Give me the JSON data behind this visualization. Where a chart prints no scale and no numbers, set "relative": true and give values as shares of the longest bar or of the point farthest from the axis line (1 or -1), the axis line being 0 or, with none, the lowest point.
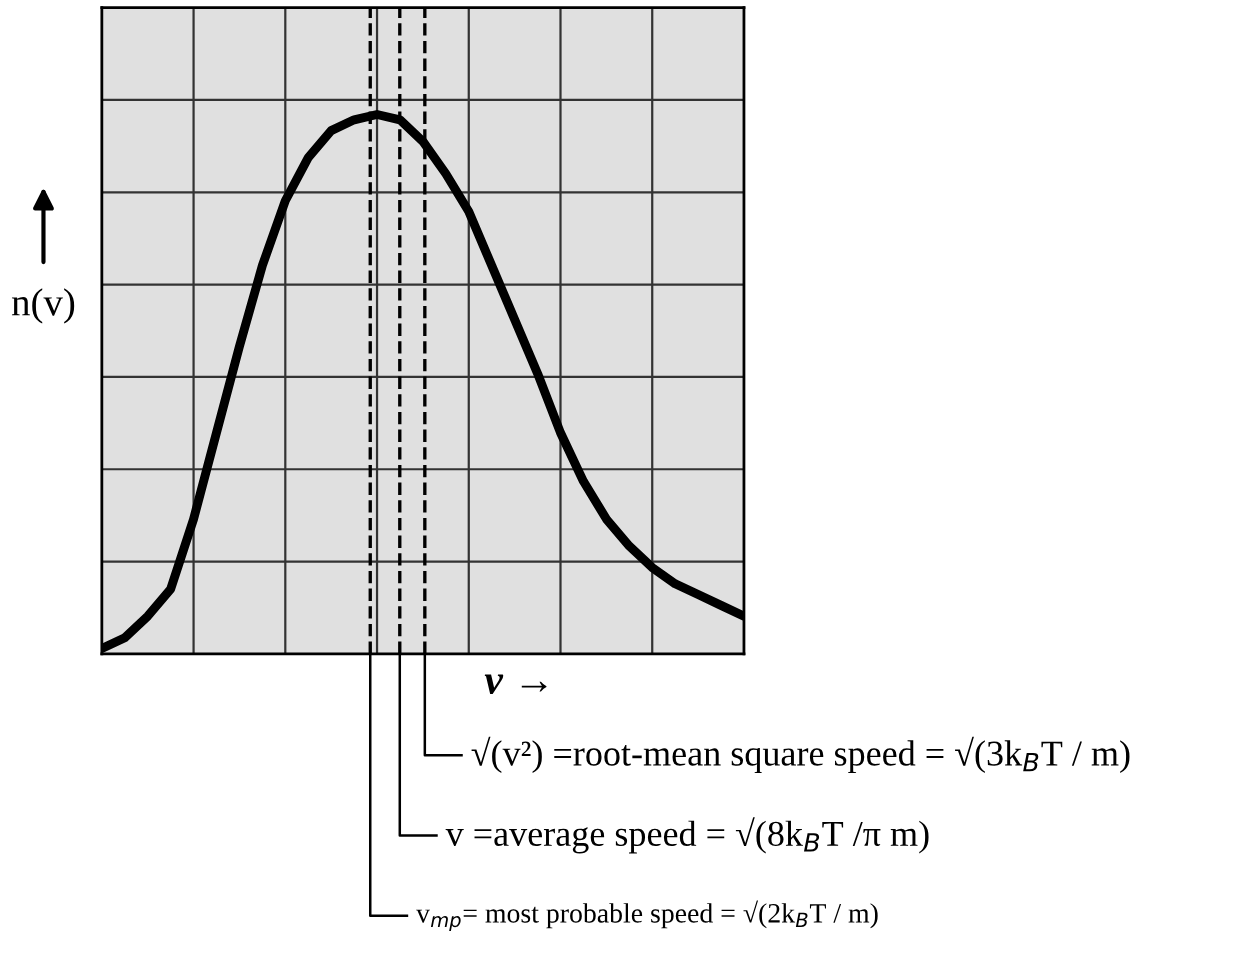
{
  "chart_data": {
    "type": "line",
    "relative": true,
    "xlabel": "v →",
    "ylabel": "n(v)",
    "categories": [
      null,
      null,
      null,
      null,
      null,
      null,
      null,
      null,
      null,
      null,
      null,
      null,
      null,
      null,
      null,
      null,
      null,
      null,
      null,
      null,
      null,
      null,
      null,
      null,
      null,
      null,
      null,
      null,
      null
    ],
    "series": [
      {
        "color": "#000000",
        "values": [
          0.01,
          0.03,
          0.07,
          0.12,
          0.25,
          0.41,
          0.57,
          0.72,
          0.84,
          0.92,
          0.97,
          0.99,
          1,
          0.99,
          0.95,
          0.89,
          0.82,
          0.72,
          0.62,
          0.52,
          0.41,
          0.32,
          0.25,
          0.2,
          0.16,
          0.13,
          0.11,
          0.09,
          0.07
        ]
      }
    ],
    "grid": true,
    "line_style": "solid",
    "marker": "none",
    "annotations": [
      "v$_{mp}$= most probable speed = √(2k$_{B}$T / m)",
      "v =average speed = √(8k$_{B}$T /π m)",
      "√(v²) =root-mean square speed = √(3k$_{B}$T / m)"
    ]
  }
}
